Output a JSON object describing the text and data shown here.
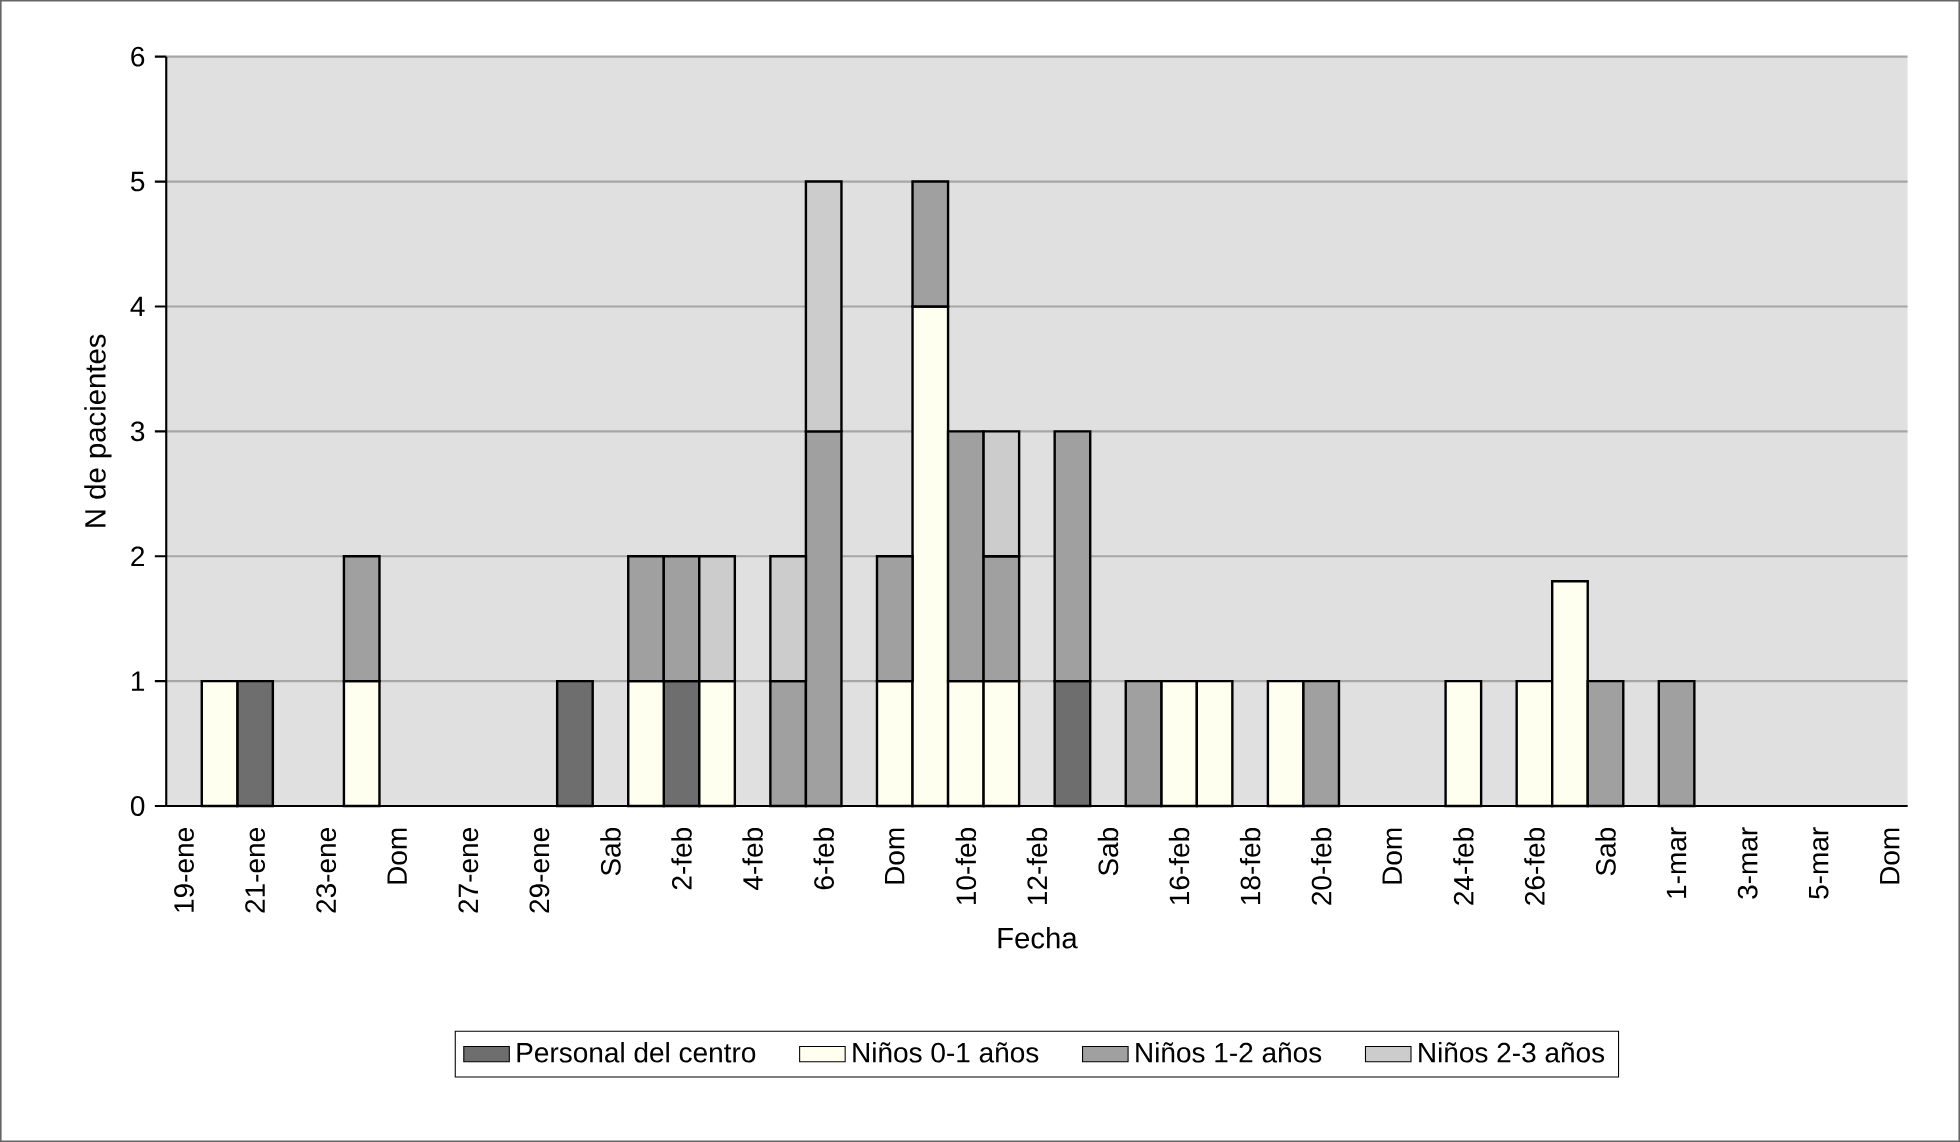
{
  "chart_data": {
    "type": "bar",
    "stacked": true,
    "xlabel": "Fecha",
    "ylabel": "N de pacientes",
    "categories": [
      "19-ene",
      null,
      "21-ene",
      null,
      "23-ene",
      null,
      "Dom",
      null,
      "27-ene",
      null,
      "29-ene",
      null,
      "Sab",
      null,
      "2-feb",
      null,
      "4-feb",
      null,
      "6-feb",
      null,
      "Dom",
      null,
      "10-feb",
      null,
      "12-feb",
      null,
      "Sab",
      null,
      "16-feb",
      null,
      "18-feb",
      null,
      "20-feb",
      null,
      "Dom",
      null,
      "24-feb",
      null,
      "26-feb",
      null,
      "Sab",
      null,
      "1-mar",
      null,
      "3-mar",
      null,
      "5-mar",
      null,
      "Dom"
    ],
    "series": [
      {
        "name": "Personal del centro",
        "color": "#6e6e6e",
        "values": [
          null,
          null,
          1,
          null,
          null,
          null,
          null,
          null,
          null,
          null,
          null,
          1,
          null,
          null,
          1,
          null,
          null,
          null,
          null,
          null,
          null,
          null,
          null,
          null,
          null,
          1,
          null,
          null,
          null,
          null,
          null,
          null,
          null,
          null,
          null,
          null,
          null,
          null,
          null,
          null,
          null,
          null,
          null,
          null,
          null,
          null,
          null,
          null,
          null
        ]
      },
      {
        "name": "Niños 0-1 años",
        "color": "#fffff0",
        "values": [
          null,
          1,
          null,
          null,
          null,
          1,
          null,
          null,
          null,
          null,
          null,
          null,
          null,
          1,
          null,
          1,
          null,
          null,
          null,
          null,
          1,
          4,
          1,
          1,
          null,
          null,
          null,
          null,
          1,
          1,
          null,
          1,
          null,
          null,
          null,
          null,
          1,
          null,
          1,
          1.8,
          null,
          null,
          null,
          null,
          null,
          null,
          null,
          null,
          null
        ]
      },
      {
        "name": "Niños 1-2 años",
        "color": "#a0a0a0",
        "values": [
          null,
          null,
          null,
          null,
          null,
          1,
          null,
          null,
          null,
          null,
          null,
          null,
          null,
          1,
          1,
          null,
          null,
          1,
          3,
          null,
          1,
          1,
          2,
          1,
          null,
          2,
          null,
          1,
          null,
          null,
          null,
          null,
          1,
          null,
          null,
          null,
          null,
          null,
          null,
          null,
          1,
          null,
          1,
          null,
          null,
          null,
          null,
          null,
          null
        ]
      },
      {
        "name": "Niños 2-3 años",
        "color": "#cccccc",
        "values": [
          null,
          null,
          null,
          null,
          null,
          null,
          null,
          null,
          null,
          null,
          null,
          null,
          null,
          null,
          null,
          1,
          null,
          1,
          2,
          null,
          null,
          null,
          null,
          1,
          null,
          null,
          null,
          null,
          null,
          null,
          null,
          null,
          null,
          null,
          null,
          null,
          null,
          null,
          null,
          null,
          null,
          null,
          null,
          null,
          null,
          null,
          null,
          null,
          null
        ]
      }
    ],
    "ylim": [
      0,
      6
    ],
    "yticks": [
      0,
      1,
      2,
      3,
      4,
      5,
      6
    ],
    "grid": "y",
    "legend": "bottom"
  }
}
